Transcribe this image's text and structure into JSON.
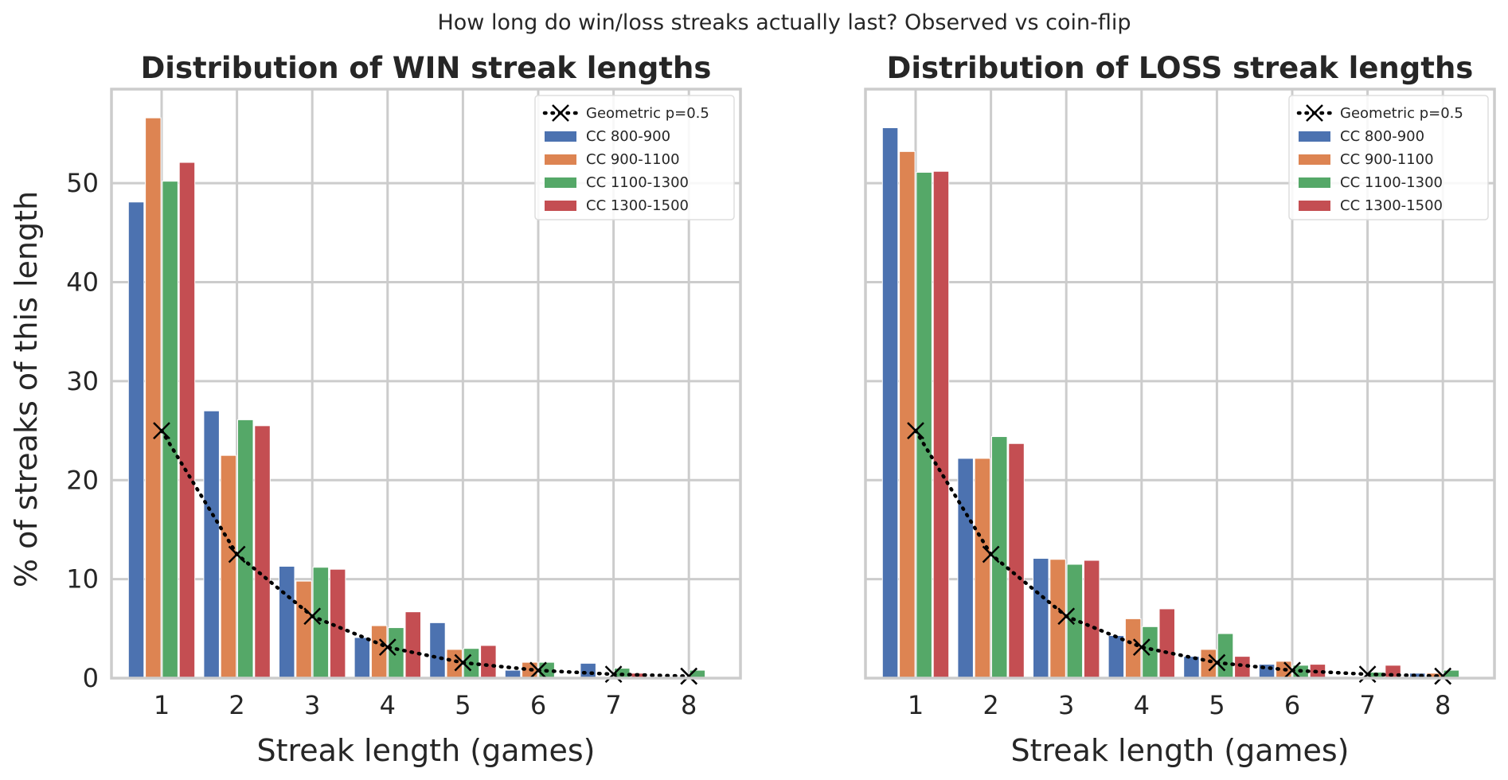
{
  "figure": {
    "suptitle": "How long do win/loss streaks actually last? Observed vs coin-flip",
    "ylabel": "% of streaks of this length"
  },
  "colors": {
    "CC 800-900": "#4c72b0",
    "CC 900-1100": "#dd8452",
    "CC 1100-1300": "#55a868",
    "CC 1300-1500": "#c44e52",
    "geometric": "#000000"
  },
  "chart_data": [
    {
      "type": "bar",
      "title": "Distribution of WIN streak lengths",
      "xlabel": "Streak length (games)",
      "ylabel": "% of streaks of this length",
      "categories": [
        1,
        2,
        3,
        4,
        5,
        6,
        7,
        8
      ],
      "ylim": [
        0,
        59.5
      ],
      "yticks": [
        0,
        10,
        20,
        30,
        40,
        50
      ],
      "grid": true,
      "legend_position": "top-right",
      "series": [
        {
          "name": "CC 800-900",
          "values": [
            48.1,
            27.0,
            11.3,
            4.1,
            5.6,
            0.8,
            1.5,
            0.0
          ]
        },
        {
          "name": "CC 900-1100",
          "values": [
            56.6,
            22.5,
            9.8,
            5.3,
            2.9,
            1.6,
            0.0,
            0.0
          ]
        },
        {
          "name": "CC 1100-1300",
          "values": [
            50.2,
            26.1,
            11.2,
            5.1,
            3.0,
            1.6,
            1.0,
            0.8
          ]
        },
        {
          "name": "CC 1300-1500",
          "values": [
            52.1,
            25.5,
            11.0,
            6.7,
            3.3,
            0.0,
            0.5,
            0.0
          ]
        }
      ],
      "line": {
        "name": "Geometric p=0.5",
        "style": "dotted",
        "marker": "x",
        "values": [
          25.0,
          12.5,
          6.25,
          3.125,
          1.5625,
          0.78125,
          0.390625,
          0.1953125
        ]
      }
    },
    {
      "type": "bar",
      "title": "Distribution of LOSS streak lengths",
      "xlabel": "Streak length (games)",
      "ylabel": "",
      "categories": [
        1,
        2,
        3,
        4,
        5,
        6,
        7,
        8
      ],
      "ylim": [
        0,
        59.5
      ],
      "yticks": [
        0,
        10,
        20,
        30,
        40,
        50
      ],
      "grid": true,
      "legend_position": "top-right",
      "series": [
        {
          "name": "CC 800-900",
          "values": [
            55.6,
            22.2,
            12.1,
            4.3,
            2.2,
            1.4,
            0.0,
            0.5
          ]
        },
        {
          "name": "CC 900-1100",
          "values": [
            53.2,
            22.2,
            12.0,
            6.0,
            2.9,
            1.7,
            0.0,
            0.5
          ]
        },
        {
          "name": "CC 1100-1300",
          "values": [
            51.1,
            24.4,
            11.5,
            5.2,
            4.5,
            1.3,
            0.6,
            0.8
          ]
        },
        {
          "name": "CC 1300-1500",
          "values": [
            51.2,
            23.7,
            11.9,
            7.0,
            2.2,
            1.4,
            1.3,
            0.0
          ]
        }
      ],
      "line": {
        "name": "Geometric p=0.5",
        "style": "dotted",
        "marker": "x",
        "values": [
          25.0,
          12.5,
          6.25,
          3.125,
          1.5625,
          0.78125,
          0.390625,
          0.1953125
        ]
      }
    }
  ]
}
